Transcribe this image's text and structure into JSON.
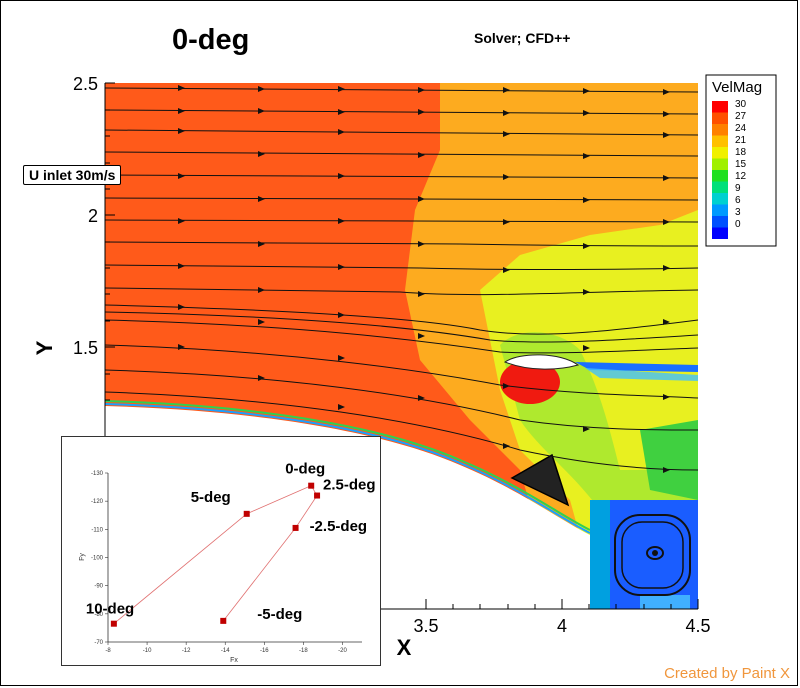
{
  "title": "0-deg",
  "subtitle": "Solver; CFD++",
  "inlet_label": "U inlet 30m/s",
  "credit": "Created by Paint X",
  "colors": {
    "legend": [
      "#0000ff",
      "#0050ff",
      "#0099ff",
      "#00d0d0",
      "#00e07a",
      "#20e020",
      "#a0f000",
      "#f0f000",
      "#ffc000",
      "#ff8000",
      "#ff5000",
      "#ff0000"
    ]
  },
  "chart_data": [
    {
      "type": "heatmap",
      "title": "0-deg",
      "xlabel": "X",
      "ylabel": "Y",
      "xlim": [
        3.0,
        4.5
      ],
      "ylim": [
        1.0,
        2.5
      ],
      "x_ticks": [
        "3.5",
        "4",
        "4.5"
      ],
      "y_ticks": [
        "1.5",
        "2",
        "2.5"
      ],
      "legend": {
        "title": "VelMag",
        "levels": [
          "30",
          "27",
          "24",
          "21",
          "18",
          "15",
          "12",
          "9",
          "6",
          "3",
          "0"
        ]
      }
    },
    {
      "type": "scatter",
      "xlabel": "Fx",
      "ylabel": "Fy",
      "xlim": [
        -8,
        -21
      ],
      "ylim": [
        70,
        130
      ],
      "x_ticks": [
        "-8",
        "-10",
        "-12",
        "-14",
        "-16",
        "-18",
        "-20"
      ],
      "y_ticks": [
        "-130",
        "-120",
        "-110",
        "-100",
        "-90",
        "-80",
        "-70"
      ],
      "points": [
        {
          "label": "10-deg",
          "fx": -8.3,
          "fy": 76.5
        },
        {
          "label": "5-deg",
          "fx": -15.1,
          "fy": 115.5
        },
        {
          "label": "0-deg",
          "fx": -18.4,
          "fy": 125.5
        },
        {
          "label": "2.5-deg",
          "fx": -18.7,
          "fy": 122.0
        },
        {
          "label": "-2.5-deg",
          "fx": -17.6,
          "fy": 110.5
        },
        {
          "label": "-5-deg",
          "fx": -13.9,
          "fy": 77.5
        }
      ]
    }
  ]
}
